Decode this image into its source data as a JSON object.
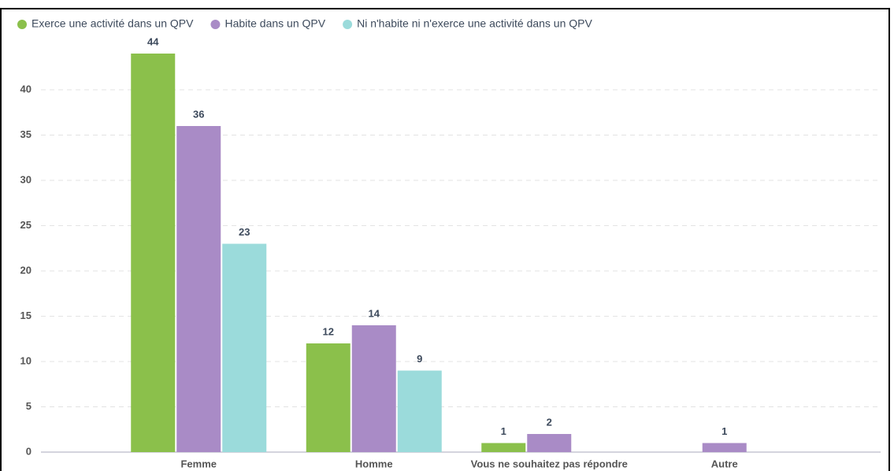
{
  "chart_data": {
    "type": "bar",
    "categories": [
      "Femme",
      "Homme",
      "Vous ne souhaitez pas répondre",
      "Autre"
    ],
    "series": [
      {
        "name": "Exerce une activité dans un QPV",
        "color": "#8bc04b",
        "values": [
          44,
          12,
          1,
          null
        ]
      },
      {
        "name": "Habite dans un QPV",
        "color": "#a98bc6",
        "values": [
          36,
          14,
          2,
          1
        ]
      },
      {
        "name": "Ni n'habite ni n'exerce une activité dans un QPV",
        "color": "#9bdbdb",
        "values": [
          23,
          9,
          null,
          null
        ]
      }
    ],
    "ylim": [
      0,
      45
    ],
    "yticks": [
      0,
      5,
      10,
      15,
      20,
      25,
      30,
      35,
      40
    ],
    "grid": true,
    "legend": "top"
  }
}
